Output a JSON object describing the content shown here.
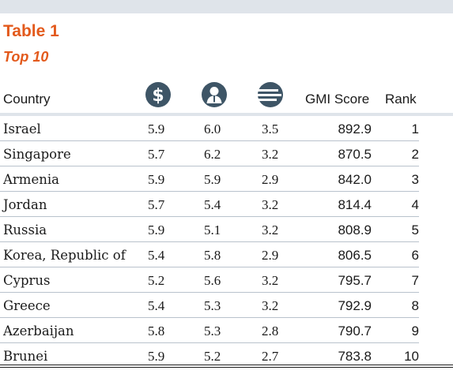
{
  "header": {
    "title": "Table 1",
    "subtitle": "Top 10"
  },
  "columns": {
    "country": "Country",
    "gmi_score": "GMI Score",
    "rank": "Rank",
    "icons": [
      "dollar-icon",
      "person-icon",
      "lines-icon"
    ]
  },
  "colors": {
    "accent": "#e35a1c",
    "band": "#dfe4ea",
    "icon": "#3e5566"
  },
  "rows": [
    {
      "country": "Israel",
      "v1": "5.9",
      "v2": "6.0",
      "v3": "3.5",
      "gmi": "892.9",
      "rank": "1"
    },
    {
      "country": "Singapore",
      "v1": "5.7",
      "v2": "6.2",
      "v3": "3.2",
      "gmi": "870.5",
      "rank": "2"
    },
    {
      "country": "Armenia",
      "v1": "5.9",
      "v2": "5.9",
      "v3": "2.9",
      "gmi": "842.0",
      "rank": "3"
    },
    {
      "country": "Jordan",
      "v1": "5.7",
      "v2": "5.4",
      "v3": "3.2",
      "gmi": "814.4",
      "rank": "4"
    },
    {
      "country": "Russia",
      "v1": "5.9",
      "v2": "5.1",
      "v3": "3.2",
      "gmi": "808.9",
      "rank": "5"
    },
    {
      "country": "Korea, Republic of",
      "v1": "5.4",
      "v2": "5.8",
      "v3": "2.9",
      "gmi": "806.5",
      "rank": "6"
    },
    {
      "country": "Cyprus",
      "v1": "5.2",
      "v2": "5.6",
      "v3": "3.2",
      "gmi": "795.7",
      "rank": "7"
    },
    {
      "country": "Greece",
      "v1": "5.4",
      "v2": "5.3",
      "v3": "3.2",
      "gmi": "792.9",
      "rank": "8"
    },
    {
      "country": "Azerbaijan",
      "v1": "5.8",
      "v2": "5.3",
      "v3": "2.8",
      "gmi": "790.7",
      "rank": "9"
    },
    {
      "country": "Brunei",
      "v1": "5.9",
      "v2": "5.2",
      "v3": "2.7",
      "gmi": "783.8",
      "rank": "10"
    }
  ]
}
